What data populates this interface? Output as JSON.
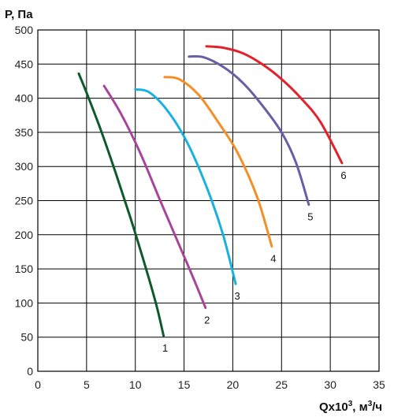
{
  "chart_data": {
    "type": "line",
    "title": "",
    "ylabel": "P, Па",
    "xlabel_main": "Qx10",
    "xlabel_sup": "3",
    "xlabel_unit": ", м",
    "xlabel_unit_sup": "3",
    "xlabel_tail": "/ч",
    "xlim": [
      0,
      35
    ],
    "ylim": [
      0,
      500
    ],
    "xticks": [
      0,
      5,
      10,
      15,
      20,
      25,
      30,
      35
    ],
    "yticks": [
      0,
      50,
      100,
      150,
      200,
      250,
      300,
      350,
      400,
      450,
      500
    ],
    "grid": true,
    "series": [
      {
        "name": "1",
        "color": "#0e5a2a",
        "points": [
          [
            4.2,
            436
          ],
          [
            5.0,
            408
          ],
          [
            6.5,
            352
          ],
          [
            8.0,
            290
          ],
          [
            9.5,
            225
          ],
          [
            11.0,
            155
          ],
          [
            12.2,
            95
          ],
          [
            12.9,
            52
          ]
        ]
      },
      {
        "name": "2",
        "color": "#a8459a",
        "points": [
          [
            6.8,
            418
          ],
          [
            8.5,
            378
          ],
          [
            10.5,
            320
          ],
          [
            12.5,
            252
          ],
          [
            14.5,
            185
          ],
          [
            16.0,
            135
          ],
          [
            17.2,
            93
          ]
        ]
      },
      {
        "name": "3",
        "color": "#1ab0e0",
        "points": [
          [
            10.0,
            413
          ],
          [
            11.5,
            408
          ],
          [
            13.5,
            378
          ],
          [
            15.5,
            330
          ],
          [
            17.5,
            263
          ],
          [
            19.0,
            200
          ],
          [
            20.3,
            128
          ]
        ]
      },
      {
        "name": "4",
        "color": "#f58e25",
        "points": [
          [
            13.0,
            431
          ],
          [
            14.5,
            428
          ],
          [
            16.5,
            405
          ],
          [
            18.5,
            365
          ],
          [
            20.5,
            320
          ],
          [
            22.5,
            255
          ],
          [
            24.0,
            183
          ]
        ]
      },
      {
        "name": "5",
        "color": "#6a5ea6",
        "points": [
          [
            15.5,
            461
          ],
          [
            17.0,
            460
          ],
          [
            19.0,
            446
          ],
          [
            21.0,
            423
          ],
          [
            23.0,
            390
          ],
          [
            25.0,
            350
          ],
          [
            26.5,
            305
          ],
          [
            27.8,
            244
          ]
        ]
      },
      {
        "name": "6",
        "color": "#e4202a",
        "points": [
          [
            17.3,
            476
          ],
          [
            19.0,
            474
          ],
          [
            21.0,
            466
          ],
          [
            23.0,
            450
          ],
          [
            25.0,
            428
          ],
          [
            27.0,
            400
          ],
          [
            29.0,
            365
          ],
          [
            31.2,
            305
          ]
        ]
      }
    ]
  }
}
